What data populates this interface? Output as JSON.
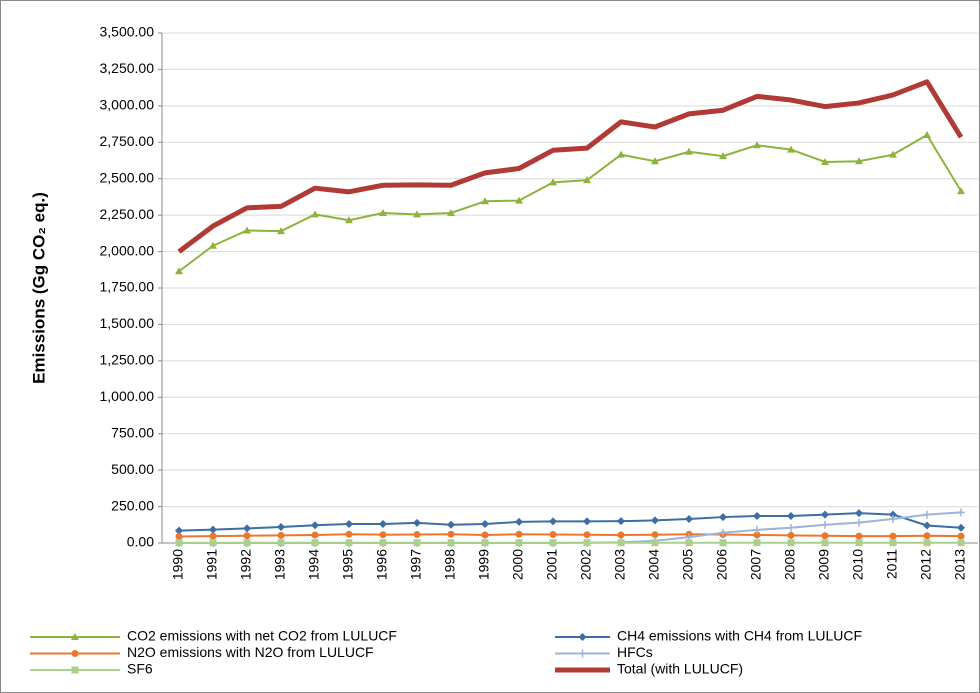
{
  "chart_data": {
    "type": "line",
    "ylabel": "Emissions (Gg CO₂ eq.)",
    "categories": [
      "1990",
      "1991",
      "1992",
      "1993",
      "1994",
      "1995",
      "1996",
      "1997",
      "1998",
      "1999",
      "2000",
      "2001",
      "2002",
      "2003",
      "2004",
      "2005",
      "2006",
      "2007",
      "2008",
      "2009",
      "2010",
      "2011",
      "2012",
      "2013"
    ],
    "ylim": [
      0,
      3500
    ],
    "yticks": [
      {
        "value": 0,
        "label": "0.00"
      },
      {
        "value": 250,
        "label": "250.00"
      },
      {
        "value": 500,
        "label": "500.00"
      },
      {
        "value": 750,
        "label": "750.00"
      },
      {
        "value": 1000,
        "label": "1,000.00"
      },
      {
        "value": 1250,
        "label": "1,250.00"
      },
      {
        "value": 1500,
        "label": "1,500.00"
      },
      {
        "value": 1750,
        "label": "1,750.00"
      },
      {
        "value": 2000,
        "label": "2,000.00"
      },
      {
        "value": 2250,
        "label": "2,250.00"
      },
      {
        "value": 2500,
        "label": "2,500.00"
      },
      {
        "value": 2750,
        "label": "2,750.00"
      },
      {
        "value": 3000,
        "label": "3,000.00"
      },
      {
        "value": 3250,
        "label": "3,250.00"
      },
      {
        "value": 3500,
        "label": "3,500.00"
      }
    ],
    "grid": true,
    "legend": "bottom",
    "series": [
      {
        "name": "CO2 emissions with net CO2 from LULUCF",
        "color": "#8cb43c",
        "marker": "triangle",
        "values": [
          1865,
          2040,
          2145,
          2140,
          2255,
          2215,
          2265,
          2255,
          2265,
          2345,
          2350,
          2475,
          2490,
          2665,
          2620,
          2685,
          2655,
          2730,
          2700,
          2615,
          2620,
          2665,
          2800,
          2415
        ]
      },
      {
        "name": "CH4 emissions with CH4 from LULUCF",
        "color": "#3a6ea5",
        "marker": "diamond",
        "values": [
          85,
          92,
          100,
          110,
          122,
          130,
          130,
          138,
          125,
          130,
          145,
          148,
          148,
          150,
          155,
          165,
          178,
          185,
          185,
          195,
          205,
          195,
          120,
          105
        ]
      },
      {
        "name": "N2O emissions with N2O from LULUCF",
        "color": "#e8782e",
        "marker": "circle",
        "values": [
          45,
          47,
          50,
          52,
          55,
          60,
          57,
          58,
          60,
          55,
          60,
          58,
          57,
          55,
          57,
          60,
          58,
          55,
          52,
          50,
          47,
          47,
          50,
          47
        ]
      },
      {
        "name": "HFCs",
        "color": "#9fb3d9",
        "marker": "plus",
        "values": [
          0,
          0,
          0,
          0,
          0,
          0,
          0,
          0,
          0,
          0,
          0,
          0,
          2,
          5,
          15,
          40,
          70,
          90,
          105,
          125,
          140,
          165,
          195,
          210
        ]
      },
      {
        "name": "SF6",
        "color": "#a9d18e",
        "marker": "square",
        "values": [
          2,
          2,
          2,
          2,
          2,
          2,
          2,
          2,
          2,
          2,
          2,
          2,
          2,
          2,
          2,
          2,
          2,
          2,
          2,
          2,
          2,
          2,
          2,
          2
        ]
      },
      {
        "name": "Total (with LULUCF)",
        "color": "#b03a36",
        "marker": "none",
        "values": [
          2000,
          2175,
          2300,
          2310,
          2435,
          2410,
          2455,
          2458,
          2455,
          2540,
          2570,
          2695,
          2710,
          2890,
          2855,
          2945,
          2970,
          3065,
          3040,
          2995,
          3020,
          3075,
          3165,
          2785
        ]
      }
    ]
  }
}
